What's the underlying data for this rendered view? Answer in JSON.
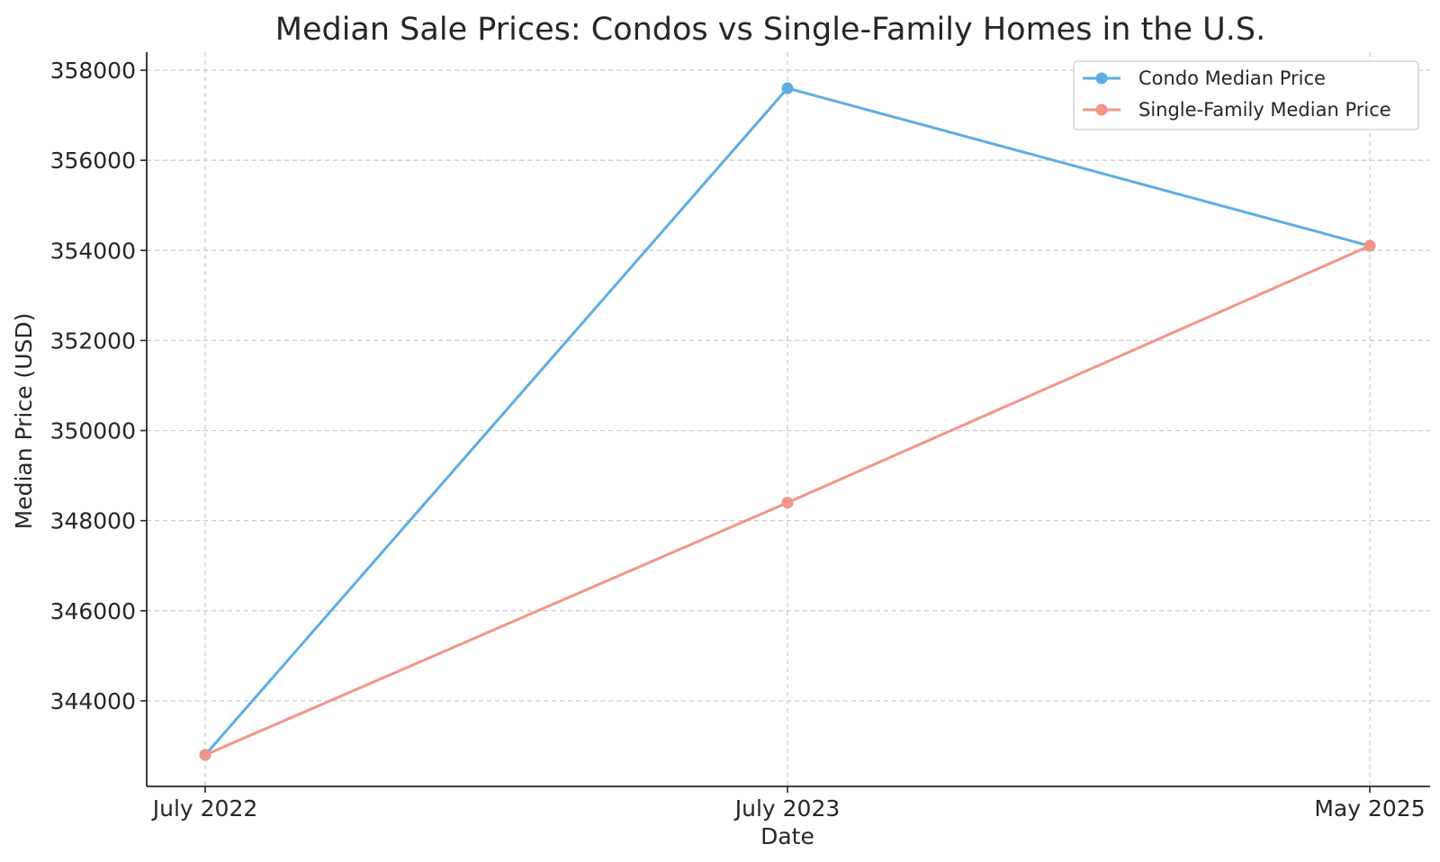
{
  "chart_data": {
    "type": "line",
    "title": "Median Sale Prices: Condos vs Single-Family Homes in the U.S.",
    "xlabel": "Date",
    "ylabel": "Median Price (USD)",
    "categories": [
      "July 2022",
      "July 2023",
      "May 2025"
    ],
    "ylim": [
      342100,
      358400
    ],
    "yticks": [
      344000,
      346000,
      348000,
      350000,
      352000,
      354000,
      356000,
      358000
    ],
    "grid": true,
    "legend_position": "top-right",
    "series": [
      {
        "name": "Condo Median Price",
        "color": "#5dade2",
        "values": [
          342800,
          357600,
          354100
        ]
      },
      {
        "name": "Single-Family Median Price",
        "color": "#f1948a",
        "values": [
          342800,
          348400,
          354100
        ]
      }
    ]
  }
}
